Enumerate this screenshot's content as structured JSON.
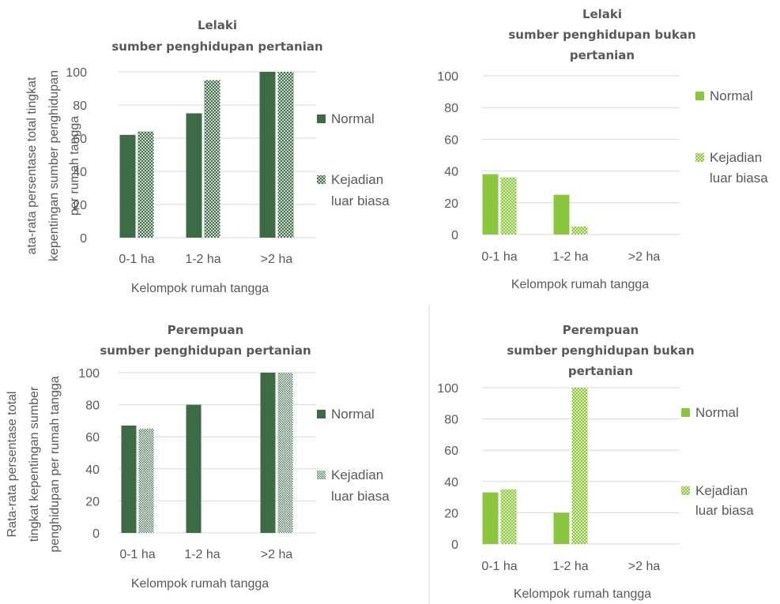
{
  "colors": {
    "dark_green": "#3d6b45",
    "light_green": "#8cc63f"
  },
  "chart_data": [
    {
      "type": "bar",
      "title": [
        "Lelaki",
        "sumber penghidupan pertanian"
      ],
      "categories": [
        "0-1 ha",
        "1-2 ha",
        ">2 ha"
      ],
      "xlabel": "Kelompok rumah tangga",
      "ylabel": [
        "ata-rata persentase total tingkat",
        "kepentingan sumber penghidupan",
        "per rumah tangga"
      ],
      "ylim": [
        0,
        100
      ],
      "yticks": [
        0,
        20,
        40,
        60,
        80,
        100
      ],
      "color": "#3d6b45",
      "legend": [
        "Normal",
        "Kejadian",
        "luar biasa"
      ],
      "series": [
        {
          "name": "Normal",
          "values": [
            62,
            75,
            100
          ]
        },
        {
          "name": "Kejadian luar biasa",
          "values": [
            64,
            95,
            100
          ]
        }
      ]
    },
    {
      "type": "bar",
      "title": [
        "Lelaki",
        "sumber penghidupan bukan",
        "pertanian"
      ],
      "categories": [
        "0-1 ha",
        "1-2 ha",
        ">2 ha"
      ],
      "xlabel": "Kelompok rumah tangga",
      "ylabel": [],
      "ylim": [
        0,
        100
      ],
      "yticks": [
        0,
        20,
        40,
        60,
        80,
        100
      ],
      "color": "#8cc63f",
      "legend": [
        "Normal",
        "Kejadian",
        "luar biasa"
      ],
      "series": [
        {
          "name": "Normal",
          "values": [
            38,
            25,
            0
          ]
        },
        {
          "name": "Kejadian luar biasa",
          "values": [
            36,
            5,
            0
          ]
        }
      ]
    },
    {
      "type": "bar",
      "title": [
        "Perempuan",
        "sumber penghidupan pertanian"
      ],
      "categories": [
        "0-1 ha",
        "1-2 ha",
        ">2 ha"
      ],
      "xlabel": "Kelompok rumah tangga",
      "ylabel": [
        "Rata-rata persentase total",
        "tingkat kepentingan sumber",
        "penghidupan per rumah tangga"
      ],
      "ylim": [
        0,
        100
      ],
      "yticks": [
        0,
        20,
        40,
        60,
        80,
        100
      ],
      "color": "#3d6b45",
      "legend": [
        "Normal",
        "Kejadian",
        "luar biasa"
      ],
      "series": [
        {
          "name": "Normal",
          "values": [
            67,
            80,
            100
          ]
        },
        {
          "name": "Kejadian luar biasa",
          "values": [
            65,
            0,
            100
          ]
        }
      ]
    },
    {
      "type": "bar",
      "title": [
        "Perempuan",
        "sumber penghidupan bukan",
        "pertanian"
      ],
      "categories": [
        "0-1 ha",
        "1-2 ha",
        ">2 ha"
      ],
      "xlabel": "Kelompok rumah tangga",
      "ylabel": [],
      "ylim": [
        0,
        100
      ],
      "yticks": [
        0,
        20,
        40,
        60,
        80,
        100
      ],
      "color": "#8cc63f",
      "legend": [
        "Normal",
        "Kejadian",
        "luar biasa"
      ],
      "series": [
        {
          "name": "Normal",
          "values": [
            33,
            20,
            0
          ]
        },
        {
          "name": "Kejadian luar biasa",
          "values": [
            35,
            100,
            0
          ]
        }
      ]
    }
  ]
}
